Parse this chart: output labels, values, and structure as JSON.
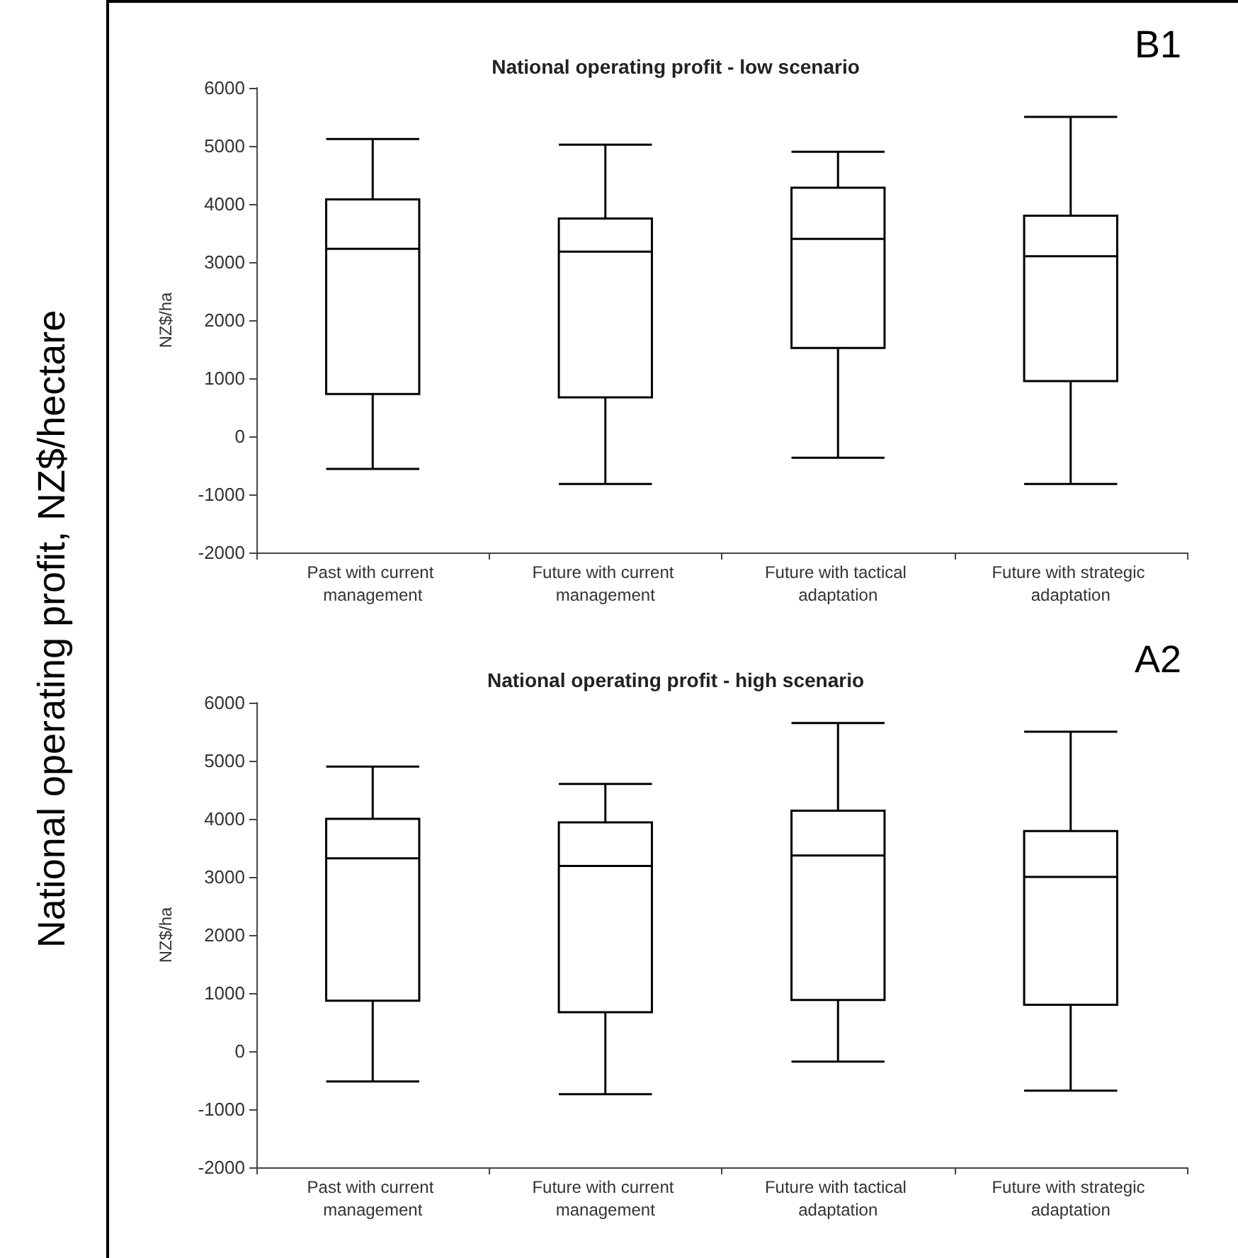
{
  "chart_data": [
    {
      "type": "box",
      "title": "National operating profit - low scenario",
      "ylabel": "NZ$/ha",
      "annotations": [
        "B1",
        "National operating profit, NZ$/hectare"
      ],
      "categories": [
        "Past with current management",
        "Future with current management",
        "Future with tactical adaptation",
        "Future with strategic adaptation"
      ],
      "boxes": [
        {
          "low": -560,
          "q1": 730,
          "median": 3230,
          "q3": 4080,
          "high": 5120
        },
        {
          "low": -820,
          "q1": 670,
          "median": 3180,
          "q3": 3750,
          "high": 5020
        },
        {
          "low": -370,
          "q1": 1520,
          "median": 3400,
          "q3": 4280,
          "high": 4900
        },
        {
          "low": -820,
          "q1": 950,
          "median": 3100,
          "q3": 3800,
          "high": 5500
        }
      ],
      "color": "#000000",
      "ylim": [
        -2000,
        6000
      ],
      "yticks": [
        -2000,
        -1000,
        0,
        1000,
        2000,
        3000,
        4000,
        5000,
        6000
      ],
      "grid": false
    },
    {
      "type": "box",
      "title": "National operating profit - high scenario",
      "ylabel": "NZ$/ha",
      "annotations": [
        "A2"
      ],
      "categories": [
        "Past with current management",
        "Future with current management",
        "Future with tactical adaptation",
        "Future with strategic adaptation"
      ],
      "boxes": [
        {
          "low": -520,
          "q1": 870,
          "median": 3320,
          "q3": 4000,
          "high": 4900
        },
        {
          "low": -740,
          "q1": 670,
          "median": 3190,
          "q3": 3940,
          "high": 4600
        },
        {
          "low": -180,
          "q1": 880,
          "median": 3370,
          "q3": 4140,
          "high": 5650
        },
        {
          "low": -680,
          "q1": 800,
          "median": 3000,
          "q3": 3790,
          "high": 5500
        }
      ],
      "color": "#000000",
      "ylim": [
        -2000,
        6000
      ],
      "yticks": [
        -2000,
        -1000,
        0,
        1000,
        2000,
        3000,
        4000,
        5000,
        6000
      ],
      "grid": false
    }
  ]
}
